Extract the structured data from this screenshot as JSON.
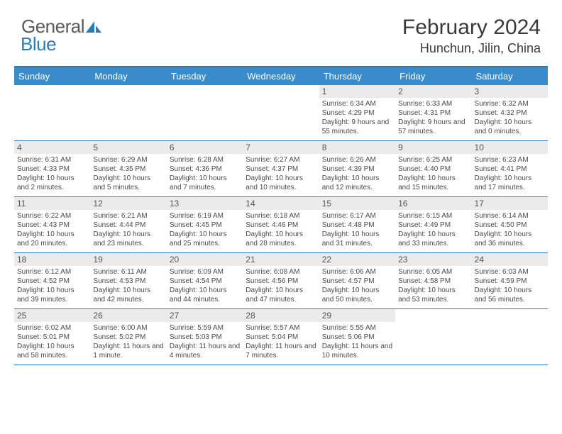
{
  "logo": {
    "part1": "General",
    "part2": "Blue"
  },
  "header": {
    "title": "February 2024",
    "location": "Hunchun, Jilin, China"
  },
  "colors": {
    "accent": "#2b7bbf",
    "header_bg": "#3a8bc9",
    "daynum_bg": "#ebebeb",
    "text": "#4a4a4a"
  },
  "weekdays": [
    "Sunday",
    "Monday",
    "Tuesday",
    "Wednesday",
    "Thursday",
    "Friday",
    "Saturday"
  ],
  "weeks": [
    [
      {
        "n": "",
        "lines": []
      },
      {
        "n": "",
        "lines": []
      },
      {
        "n": "",
        "lines": []
      },
      {
        "n": "",
        "lines": []
      },
      {
        "n": "1",
        "lines": [
          "Sunrise: 6:34 AM",
          "Sunset: 4:29 PM",
          "Daylight: 9 hours and 55 minutes."
        ]
      },
      {
        "n": "2",
        "lines": [
          "Sunrise: 6:33 AM",
          "Sunset: 4:31 PM",
          "Daylight: 9 hours and 57 minutes."
        ]
      },
      {
        "n": "3",
        "lines": [
          "Sunrise: 6:32 AM",
          "Sunset: 4:32 PM",
          "Daylight: 10 hours and 0 minutes."
        ]
      }
    ],
    [
      {
        "n": "4",
        "lines": [
          "Sunrise: 6:31 AM",
          "Sunset: 4:33 PM",
          "Daylight: 10 hours and 2 minutes."
        ]
      },
      {
        "n": "5",
        "lines": [
          "Sunrise: 6:29 AM",
          "Sunset: 4:35 PM",
          "Daylight: 10 hours and 5 minutes."
        ]
      },
      {
        "n": "6",
        "lines": [
          "Sunrise: 6:28 AM",
          "Sunset: 4:36 PM",
          "Daylight: 10 hours and 7 minutes."
        ]
      },
      {
        "n": "7",
        "lines": [
          "Sunrise: 6:27 AM",
          "Sunset: 4:37 PM",
          "Daylight: 10 hours and 10 minutes."
        ]
      },
      {
        "n": "8",
        "lines": [
          "Sunrise: 6:26 AM",
          "Sunset: 4:39 PM",
          "Daylight: 10 hours and 12 minutes."
        ]
      },
      {
        "n": "9",
        "lines": [
          "Sunrise: 6:25 AM",
          "Sunset: 4:40 PM",
          "Daylight: 10 hours and 15 minutes."
        ]
      },
      {
        "n": "10",
        "lines": [
          "Sunrise: 6:23 AM",
          "Sunset: 4:41 PM",
          "Daylight: 10 hours and 17 minutes."
        ]
      }
    ],
    [
      {
        "n": "11",
        "lines": [
          "Sunrise: 6:22 AM",
          "Sunset: 4:43 PM",
          "Daylight: 10 hours and 20 minutes."
        ]
      },
      {
        "n": "12",
        "lines": [
          "Sunrise: 6:21 AM",
          "Sunset: 4:44 PM",
          "Daylight: 10 hours and 23 minutes."
        ]
      },
      {
        "n": "13",
        "lines": [
          "Sunrise: 6:19 AM",
          "Sunset: 4:45 PM",
          "Daylight: 10 hours and 25 minutes."
        ]
      },
      {
        "n": "14",
        "lines": [
          "Sunrise: 6:18 AM",
          "Sunset: 4:46 PM",
          "Daylight: 10 hours and 28 minutes."
        ]
      },
      {
        "n": "15",
        "lines": [
          "Sunrise: 6:17 AM",
          "Sunset: 4:48 PM",
          "Daylight: 10 hours and 31 minutes."
        ]
      },
      {
        "n": "16",
        "lines": [
          "Sunrise: 6:15 AM",
          "Sunset: 4:49 PM",
          "Daylight: 10 hours and 33 minutes."
        ]
      },
      {
        "n": "17",
        "lines": [
          "Sunrise: 6:14 AM",
          "Sunset: 4:50 PM",
          "Daylight: 10 hours and 36 minutes."
        ]
      }
    ],
    [
      {
        "n": "18",
        "lines": [
          "Sunrise: 6:12 AM",
          "Sunset: 4:52 PM",
          "Daylight: 10 hours and 39 minutes."
        ]
      },
      {
        "n": "19",
        "lines": [
          "Sunrise: 6:11 AM",
          "Sunset: 4:53 PM",
          "Daylight: 10 hours and 42 minutes."
        ]
      },
      {
        "n": "20",
        "lines": [
          "Sunrise: 6:09 AM",
          "Sunset: 4:54 PM",
          "Daylight: 10 hours and 44 minutes."
        ]
      },
      {
        "n": "21",
        "lines": [
          "Sunrise: 6:08 AM",
          "Sunset: 4:56 PM",
          "Daylight: 10 hours and 47 minutes."
        ]
      },
      {
        "n": "22",
        "lines": [
          "Sunrise: 6:06 AM",
          "Sunset: 4:57 PM",
          "Daylight: 10 hours and 50 minutes."
        ]
      },
      {
        "n": "23",
        "lines": [
          "Sunrise: 6:05 AM",
          "Sunset: 4:58 PM",
          "Daylight: 10 hours and 53 minutes."
        ]
      },
      {
        "n": "24",
        "lines": [
          "Sunrise: 6:03 AM",
          "Sunset: 4:59 PM",
          "Daylight: 10 hours and 56 minutes."
        ]
      }
    ],
    [
      {
        "n": "25",
        "lines": [
          "Sunrise: 6:02 AM",
          "Sunset: 5:01 PM",
          "Daylight: 10 hours and 58 minutes."
        ]
      },
      {
        "n": "26",
        "lines": [
          "Sunrise: 6:00 AM",
          "Sunset: 5:02 PM",
          "Daylight: 11 hours and 1 minute."
        ]
      },
      {
        "n": "27",
        "lines": [
          "Sunrise: 5:59 AM",
          "Sunset: 5:03 PM",
          "Daylight: 11 hours and 4 minutes."
        ]
      },
      {
        "n": "28",
        "lines": [
          "Sunrise: 5:57 AM",
          "Sunset: 5:04 PM",
          "Daylight: 11 hours and 7 minutes."
        ]
      },
      {
        "n": "29",
        "lines": [
          "Sunrise: 5:55 AM",
          "Sunset: 5:06 PM",
          "Daylight: 11 hours and 10 minutes."
        ]
      },
      {
        "n": "",
        "lines": []
      },
      {
        "n": "",
        "lines": []
      }
    ]
  ]
}
